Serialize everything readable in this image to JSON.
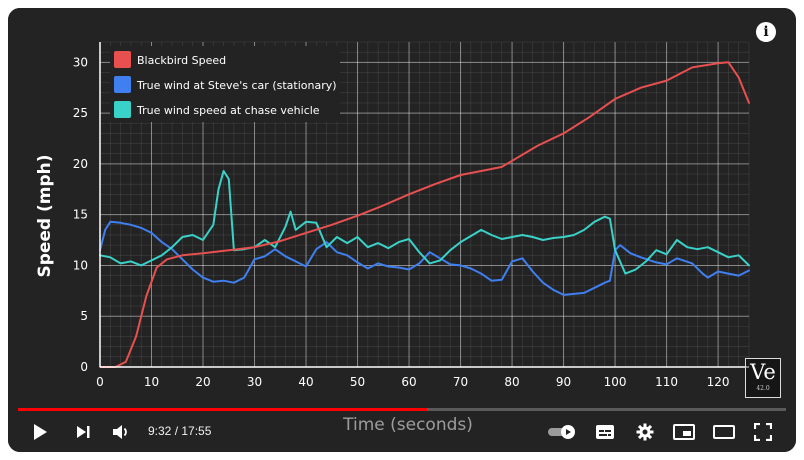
{
  "player": {
    "time_current": "9:32",
    "time_separator": " / ",
    "time_total": "17:55",
    "progress_fraction": 0.532,
    "logo_text": "Ve",
    "logo_sub": "42.0"
  },
  "icons": {
    "info": "info-icon",
    "play": "play-icon",
    "next": "next-icon",
    "volume": "volume-icon",
    "autoplay": "autoplay-toggle-icon",
    "subtitles": "subtitles-icon",
    "settings": "gear-icon",
    "miniplayer": "miniplayer-icon",
    "theater": "theater-icon",
    "fullscreen": "fullscreen-icon"
  },
  "chart_data": {
    "type": "line",
    "xlabel": "Time (seconds)",
    "ylabel": "Speed (mph)",
    "xlim": [
      0,
      126
    ],
    "ylim": [
      0,
      32
    ],
    "x_ticks": [
      0,
      10,
      20,
      30,
      40,
      50,
      60,
      70,
      80,
      90,
      100,
      110,
      120
    ],
    "y_ticks": [
      0,
      5,
      10,
      15,
      20,
      25,
      30
    ],
    "grid": true,
    "legend_position": "top-left",
    "series": [
      {
        "name": "Blackbird Speed",
        "color": "#e85050",
        "points": [
          [
            0,
            0
          ],
          [
            3,
            0
          ],
          [
            5,
            0.5
          ],
          [
            7,
            3
          ],
          [
            9,
            7
          ],
          [
            11,
            9.8
          ],
          [
            13,
            10.6
          ],
          [
            16,
            11
          ],
          [
            20,
            11.2
          ],
          [
            25,
            11.5
          ],
          [
            30,
            11.8
          ],
          [
            35,
            12.4
          ],
          [
            40,
            13.2
          ],
          [
            45,
            14
          ],
          [
            50,
            14.9
          ],
          [
            55,
            15.9
          ],
          [
            60,
            17
          ],
          [
            65,
            18
          ],
          [
            70,
            18.9
          ],
          [
            75,
            19.4
          ],
          [
            78,
            19.7
          ],
          [
            80,
            20.3
          ],
          [
            85,
            21.8
          ],
          [
            90,
            23
          ],
          [
            95,
            24.6
          ],
          [
            100,
            26.4
          ],
          [
            105,
            27.5
          ],
          [
            110,
            28.2
          ],
          [
            115,
            29.5
          ],
          [
            120,
            29.9
          ],
          [
            122,
            30
          ],
          [
            124,
            28.5
          ],
          [
            126,
            26
          ]
        ]
      },
      {
        "name": "True wind at Steve's car (stationary)",
        "color": "#3f7ff0",
        "points": [
          [
            0,
            11.5
          ],
          [
            1,
            13.5
          ],
          [
            2,
            14.3
          ],
          [
            4,
            14.2
          ],
          [
            6,
            14
          ],
          [
            8,
            13.7
          ],
          [
            10,
            13.2
          ],
          [
            12,
            12.3
          ],
          [
            14,
            11.6
          ],
          [
            16,
            10.6
          ],
          [
            18,
            9.6
          ],
          [
            20,
            8.8
          ],
          [
            22,
            8.4
          ],
          [
            24,
            8.5
          ],
          [
            26,
            8.3
          ],
          [
            28,
            8.8
          ],
          [
            30,
            10.6
          ],
          [
            32,
            10.9
          ],
          [
            34,
            11.6
          ],
          [
            36,
            10.9
          ],
          [
            38,
            10.4
          ],
          [
            40,
            9.9
          ],
          [
            42,
            11.6
          ],
          [
            44,
            12.3
          ],
          [
            46,
            11.3
          ],
          [
            48,
            11
          ],
          [
            50,
            10.3
          ],
          [
            52,
            9.7
          ],
          [
            54,
            10.2
          ],
          [
            56,
            9.9
          ],
          [
            58,
            9.8
          ],
          [
            60,
            9.6
          ],
          [
            62,
            10.2
          ],
          [
            64,
            11.3
          ],
          [
            66,
            10.7
          ],
          [
            68,
            10.1
          ],
          [
            70,
            10
          ],
          [
            72,
            9.7
          ],
          [
            74,
            9.2
          ],
          [
            76,
            8.5
          ],
          [
            78,
            8.6
          ],
          [
            80,
            10.4
          ],
          [
            82,
            10.7
          ],
          [
            84,
            9.4
          ],
          [
            86,
            8.3
          ],
          [
            88,
            7.6
          ],
          [
            90,
            7.1
          ],
          [
            92,
            7.2
          ],
          [
            94,
            7.3
          ],
          [
            96,
            7.8
          ],
          [
            98,
            8.3
          ],
          [
            99,
            8.5
          ],
          [
            100,
            11.5
          ],
          [
            101,
            12
          ],
          [
            103,
            11.2
          ],
          [
            105,
            10.8
          ],
          [
            108,
            10.3
          ],
          [
            110,
            10.1
          ],
          [
            112,
            10.7
          ],
          [
            115,
            10.2
          ],
          [
            117,
            9.2
          ],
          [
            118,
            8.8
          ],
          [
            120,
            9.4
          ],
          [
            122,
            9.2
          ],
          [
            124,
            9
          ],
          [
            126,
            9.5
          ]
        ]
      },
      {
        "name": "True wind speed at chase vehicle",
        "color": "#3ad2c8",
        "points": [
          [
            0,
            11
          ],
          [
            2,
            10.8
          ],
          [
            4,
            10.2
          ],
          [
            6,
            10.4
          ],
          [
            8,
            10
          ],
          [
            10,
            10.5
          ],
          [
            12,
            11
          ],
          [
            14,
            11.8
          ],
          [
            16,
            12.8
          ],
          [
            18,
            13
          ],
          [
            20,
            12.5
          ],
          [
            22,
            14
          ],
          [
            23,
            17.5
          ],
          [
            24,
            19.3
          ],
          [
            25,
            18.5
          ],
          [
            26,
            11.5
          ],
          [
            28,
            11.6
          ],
          [
            30,
            11.8
          ],
          [
            32,
            12.5
          ],
          [
            34,
            11.8
          ],
          [
            36,
            13.8
          ],
          [
            37,
            15.3
          ],
          [
            38,
            13.5
          ],
          [
            40,
            14.3
          ],
          [
            42,
            14.2
          ],
          [
            44,
            11.8
          ],
          [
            46,
            12.8
          ],
          [
            48,
            12.2
          ],
          [
            50,
            12.8
          ],
          [
            52,
            11.8
          ],
          [
            54,
            12.2
          ],
          [
            56,
            11.7
          ],
          [
            58,
            12.3
          ],
          [
            60,
            12.6
          ],
          [
            62,
            11.3
          ],
          [
            64,
            10.2
          ],
          [
            66,
            10.5
          ],
          [
            68,
            11.5
          ],
          [
            70,
            12.3
          ],
          [
            72,
            12.9
          ],
          [
            74,
            13.5
          ],
          [
            76,
            13
          ],
          [
            78,
            12.6
          ],
          [
            80,
            12.8
          ],
          [
            82,
            13
          ],
          [
            84,
            12.8
          ],
          [
            86,
            12.5
          ],
          [
            88,
            12.7
          ],
          [
            90,
            12.8
          ],
          [
            92,
            13
          ],
          [
            94,
            13.5
          ],
          [
            96,
            14.3
          ],
          [
            98,
            14.8
          ],
          [
            99,
            14.6
          ],
          [
            100,
            11.5
          ],
          [
            102,
            9.2
          ],
          [
            104,
            9.6
          ],
          [
            106,
            10.4
          ],
          [
            108,
            11.5
          ],
          [
            110,
            11.1
          ],
          [
            112,
            12.5
          ],
          [
            114,
            11.8
          ],
          [
            116,
            11.6
          ],
          [
            118,
            11.8
          ],
          [
            120,
            11.3
          ],
          [
            122,
            10.8
          ],
          [
            124,
            11
          ],
          [
            126,
            10
          ]
        ]
      }
    ]
  }
}
